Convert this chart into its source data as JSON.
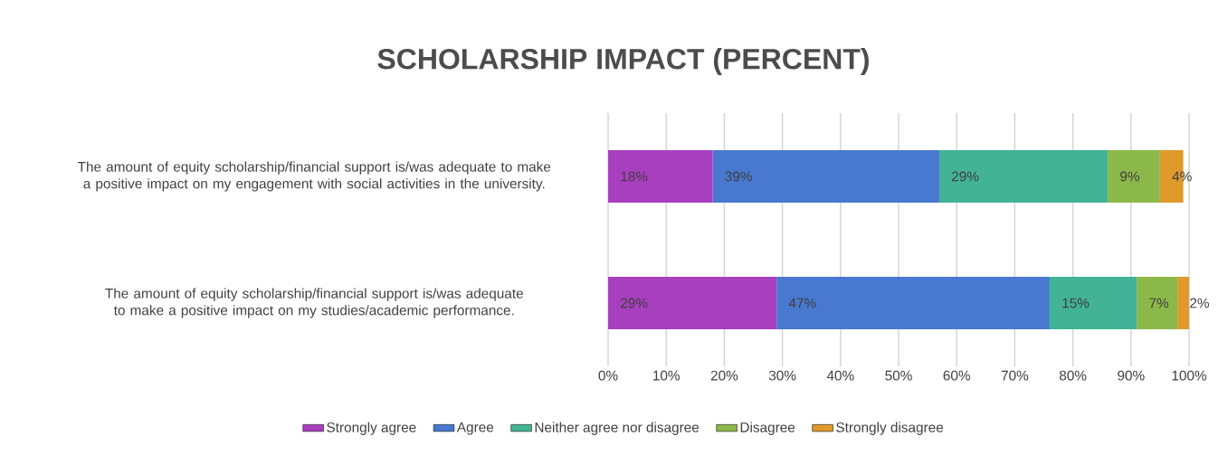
{
  "chart_data": {
    "type": "bar",
    "orientation": "horizontal",
    "stacked": true,
    "title": "SCHOLARSHIP IMPACT (PERCENT)",
    "categories": [
      "The amount of equity scholarship/financial support is/was adequate to make a positive impact on my engagement with social activities in the university.",
      "The amount of equity scholarship/financial support is/was adequate to make a positive impact on my studies/academic performance."
    ],
    "series": [
      {
        "name": "Strongly agree",
        "color": "#a83fbf",
        "values": [
          18,
          29
        ],
        "value_labels": [
          "18%",
          "29%"
        ]
      },
      {
        "name": "Agree",
        "color": "#4878cf",
        "values": [
          39,
          47
        ],
        "value_labels": [
          "39%",
          "47%"
        ]
      },
      {
        "name": "Neither agree nor disagree",
        "color": "#42b395",
        "values": [
          29,
          15
        ],
        "value_labels": [
          "29%",
          "15%"
        ]
      },
      {
        "name": "Disagree",
        "color": "#8cb84a",
        "values": [
          9,
          7
        ],
        "value_labels": [
          "9%",
          "7%"
        ]
      },
      {
        "name": "Strongly disagree",
        "color": "#e09a2b",
        "values": [
          4,
          2
        ],
        "value_labels": [
          "4%",
          "2%"
        ]
      }
    ],
    "xlim": [
      0,
      100
    ],
    "xticks": [
      {
        "value": 0,
        "label": "0%"
      },
      {
        "value": 10,
        "label": "10%"
      },
      {
        "value": 20,
        "label": "20%"
      },
      {
        "value": 30,
        "label": "30%"
      },
      {
        "value": 40,
        "label": "40%"
      },
      {
        "value": 50,
        "label": "50%"
      },
      {
        "value": 60,
        "label": "60%"
      },
      {
        "value": 70,
        "label": "70%"
      },
      {
        "value": 80,
        "label": "80%"
      },
      {
        "value": 90,
        "label": "90%"
      },
      {
        "value": 100,
        "label": "100%"
      }
    ],
    "grid": "x",
    "legend": "bottom"
  }
}
